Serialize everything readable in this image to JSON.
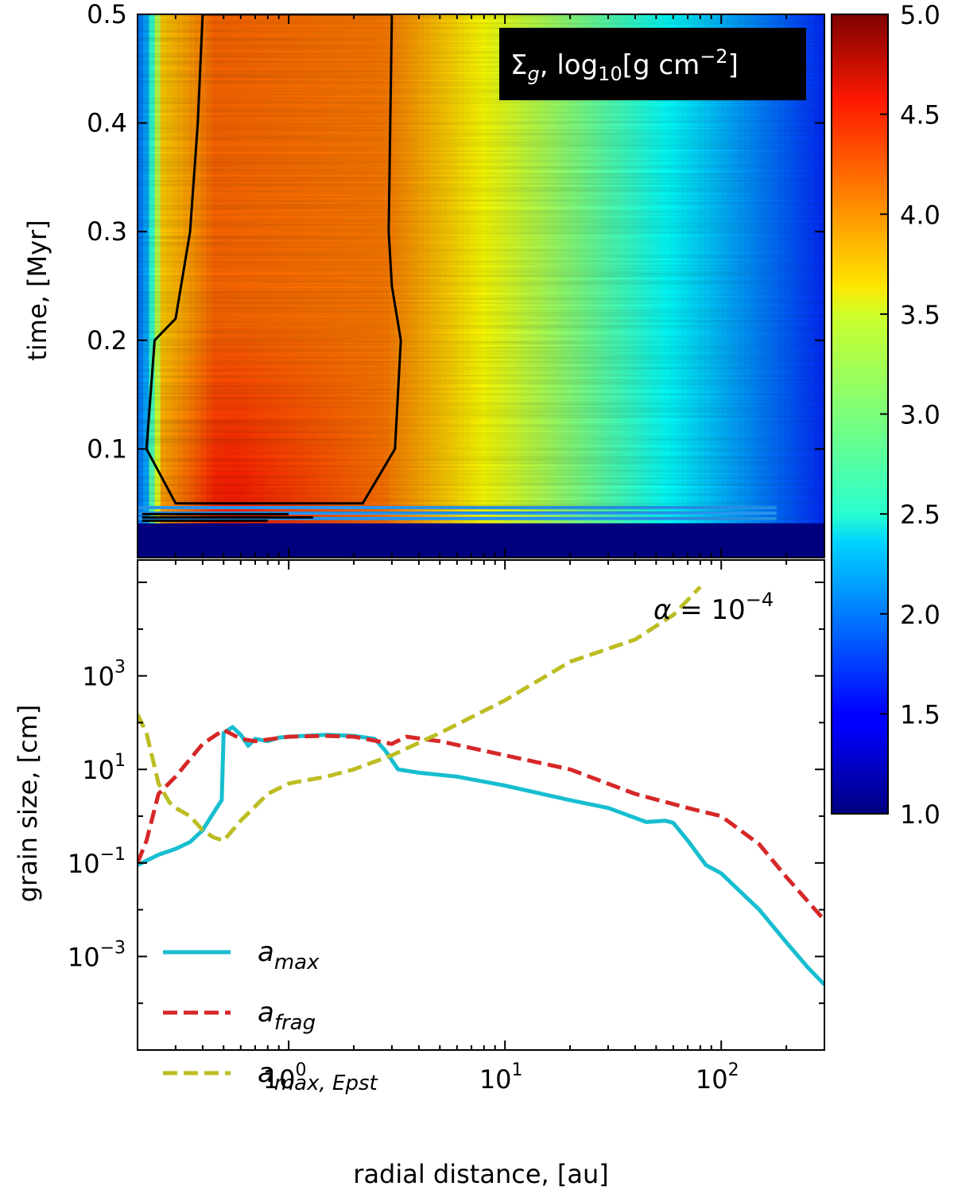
{
  "chart_data": [
    {
      "type": "heatmap",
      "panel": "top",
      "annotation": {
        "base": "Σ",
        "sub": "g",
        "mid": ", log",
        "sub10": "10",
        "unit_open": "[g cm",
        "exp": "−2",
        "unit_close": "]"
      },
      "ylabel": "time, [Myr]",
      "y_ticks": [
        0.1,
        0.2,
        0.3,
        0.4,
        0.5
      ],
      "y_tick_labels": [
        "0.1",
        "0.2",
        "0.3",
        "0.4",
        "0.5"
      ],
      "ylim": [
        0.0,
        0.5
      ],
      "xlim_au": [
        0.2,
        300
      ],
      "x_scale": "log",
      "onset_time_myr": 0.03,
      "contour_level_log": 4.0,
      "contour_inner_au": [
        [
          0.05,
          0.3
        ],
        [
          0.1,
          0.22
        ],
        [
          0.2,
          0.24
        ],
        [
          0.22,
          0.3
        ],
        [
          0.3,
          0.35
        ],
        [
          0.4,
          0.38
        ],
        [
          0.5,
          0.4
        ]
      ],
      "contour_outer_au": [
        [
          0.05,
          2.2
        ],
        [
          0.1,
          3.1
        ],
        [
          0.2,
          3.3
        ],
        [
          0.25,
          3.0
        ],
        [
          0.3,
          2.9
        ],
        [
          0.4,
          2.95
        ],
        [
          0.5,
          3.0
        ]
      ],
      "colorbar": {
        "min": 1.0,
        "max": 5.0,
        "colormap": "jet",
        "ticks": [
          "1.0",
          "1.5",
          "2.0",
          "2.5",
          "3.0",
          "3.5",
          "4.0",
          "4.5",
          "5.0"
        ]
      }
    },
    {
      "type": "line",
      "panel": "bottom",
      "x_scale": "log",
      "y_scale": "log",
      "xlabel": "radial distance, [au]",
      "ylabel": "grain size, [cm]",
      "xlim": [
        0.2,
        300
      ],
      "ylim": [
        1e-05,
        300000
      ],
      "x_ticks": [
        1,
        10,
        100
      ],
      "x_tick_labels": [
        {
          "base": "10",
          "exp": "0"
        },
        {
          "base": "10",
          "exp": "1"
        },
        {
          "base": "10",
          "exp": "2"
        }
      ],
      "y_ticks": [
        0.001,
        0.1,
        10,
        1000
      ],
      "y_tick_labels": [
        {
          "base": "10",
          "exp": "−3"
        },
        {
          "base": "10",
          "exp": "−1"
        },
        {
          "base": "10",
          "exp": "1"
        },
        {
          "base": "10",
          "exp": "3"
        }
      ],
      "annotation": {
        "lhs": "α",
        "eq": " = 10",
        "exp": "−4"
      },
      "legend_position": "lower-left",
      "series": [
        {
          "name": "a_max",
          "label_base": "a",
          "label_sub": "max",
          "color": "#17becf",
          "dash": "solid",
          "points": [
            [
              0.2,
              0.09
            ],
            [
              0.25,
              0.15
            ],
            [
              0.3,
              0.2
            ],
            [
              0.35,
              0.28
            ],
            [
              0.4,
              0.5
            ],
            [
              0.45,
              1.2
            ],
            [
              0.49,
              2.2
            ],
            [
              0.5,
              60
            ],
            [
              0.55,
              80
            ],
            [
              0.6,
              55
            ],
            [
              0.65,
              32
            ],
            [
              0.7,
              45
            ],
            [
              0.8,
              40
            ],
            [
              0.9,
              48
            ],
            [
              1.0,
              50
            ],
            [
              1.5,
              55
            ],
            [
              2.0,
              52
            ],
            [
              2.5,
              45
            ],
            [
              2.8,
              25
            ],
            [
              3.2,
              10
            ],
            [
              4.0,
              8.5
            ],
            [
              6.0,
              7.0
            ],
            [
              10,
              4.5
            ],
            [
              20,
              2.2
            ],
            [
              30,
              1.5
            ],
            [
              45,
              0.75
            ],
            [
              55,
              0.8
            ],
            [
              60,
              0.72
            ],
            [
              70,
              0.3
            ],
            [
              85,
              0.09
            ],
            [
              100,
              0.06
            ],
            [
              150,
              0.01
            ],
            [
              200,
              0.002
            ],
            [
              250,
              0.0006
            ],
            [
              300,
              0.00025
            ]
          ]
        },
        {
          "name": "a_frag",
          "label_base": "a",
          "label_sub": "frag",
          "color": "#d62728",
          "dash": "dashed",
          "points": [
            [
              0.2,
              0.1
            ],
            [
              0.22,
              0.3
            ],
            [
              0.25,
              3.0
            ],
            [
              0.3,
              7.0
            ],
            [
              0.4,
              35
            ],
            [
              0.5,
              70
            ],
            [
              0.6,
              45
            ],
            [
              0.7,
              40
            ],
            [
              1.0,
              50
            ],
            [
              1.5,
              52
            ],
            [
              2.0,
              50
            ],
            [
              3.0,
              35
            ],
            [
              3.5,
              50
            ],
            [
              5.0,
              40
            ],
            [
              10,
              20
            ],
            [
              20,
              10
            ],
            [
              40,
              3.0
            ],
            [
              70,
              1.5
            ],
            [
              100,
              1.0
            ],
            [
              150,
              0.25
            ],
            [
              200,
              0.05
            ],
            [
              300,
              0.006
            ]
          ]
        },
        {
          "name": "a_max,Epst",
          "label_base": "a",
          "label_sub": "max, Epst",
          "color": "#bcbd22",
          "dash": "dashed",
          "points": [
            [
              0.2,
              150
            ],
            [
              0.22,
              60
            ],
            [
              0.25,
              5
            ],
            [
              0.28,
              2.0
            ],
            [
              0.3,
              1.5
            ],
            [
              0.35,
              1.0
            ],
            [
              0.4,
              0.5
            ],
            [
              0.45,
              0.35
            ],
            [
              0.5,
              0.3
            ],
            [
              0.6,
              0.8
            ],
            [
              0.8,
              3.0
            ],
            [
              1.0,
              5.0
            ],
            [
              1.5,
              7.0
            ],
            [
              2.0,
              10
            ],
            [
              3.0,
              20
            ],
            [
              5.0,
              60
            ],
            [
              10,
              300
            ],
            [
              20,
              2000
            ],
            [
              40,
              6000
            ],
            [
              60,
              20000
            ],
            [
              80,
              80000
            ]
          ]
        }
      ]
    }
  ]
}
